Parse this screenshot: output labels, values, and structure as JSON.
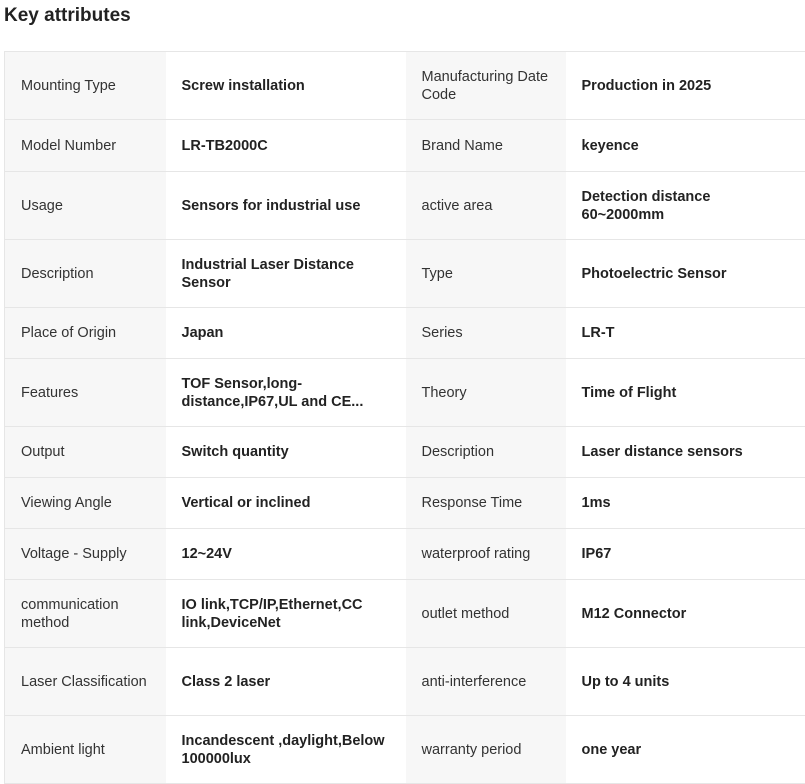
{
  "header": {
    "title": "Key attributes"
  },
  "table": {
    "rows": [
      [
        "Mounting Type",
        "Screw installation",
        "Manufacturing Date Code",
        "Production in 2025"
      ],
      [
        "Model Number",
        "LR-TB2000C",
        "Brand Name",
        "keyence"
      ],
      [
        "Usage",
        "Sensors for industrial use",
        "active area",
        "Detection distance 60~2000mm"
      ],
      [
        "Description",
        "Industrial Laser Distance Sensor",
        "Type",
        "Photoelectric Sensor"
      ],
      [
        "Place of Origin",
        "Japan",
        "Series",
        "LR-T"
      ],
      [
        "Features",
        "TOF Sensor,long-distance,IP67,UL and CE...",
        "Theory",
        "Time of Flight"
      ],
      [
        "Output",
        "Switch quantity",
        "Description",
        "Laser distance sensors"
      ],
      [
        "Viewing Angle",
        "Vertical or inclined",
        "Response Time",
        "1ms"
      ],
      [
        "Voltage - Supply",
        "12~24V",
        "waterproof rating",
        "IP67"
      ],
      [
        "communication method",
        "IO link,TCP/IP,Ethernet,CC link,DeviceNet",
        "outlet method",
        "M12 Connector"
      ],
      [
        "Laser Classification",
        "Class 2 laser",
        "anti-interference",
        "Up to 4 units"
      ],
      [
        "Ambient light",
        "Incandescent ,daylight,Below 100000lux",
        "warranty period",
        "one year"
      ]
    ]
  }
}
